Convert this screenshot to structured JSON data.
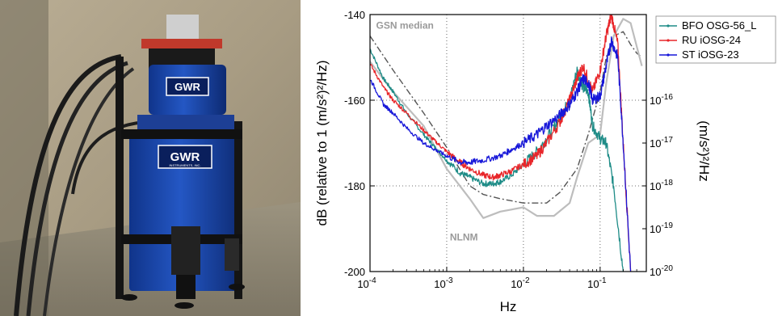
{
  "photo": {
    "logo_top": "GWR",
    "logo_bottom": "GWR",
    "logo_sub": "INSTRUMENTS, INC."
  },
  "chart_data": {
    "type": "line",
    "xlabel": "Hz",
    "ylabel": "dB (relative to 1 (m/s²)²/Hz)",
    "ylabel_right": "(m/s²)²/Hz",
    "x_scale": "log",
    "xlim": [
      0.0001,
      0.4
    ],
    "ylim": [
      -200,
      -140
    ],
    "x_ticks": [
      {
        "label_base": "10",
        "label_exp": "-4",
        "value": 0.0001
      },
      {
        "label_base": "10",
        "label_exp": "-3",
        "value": 0.001
      },
      {
        "label_base": "10",
        "label_exp": "-2",
        "value": 0.01
      },
      {
        "label_base": "10",
        "label_exp": "-1",
        "value": 0.1
      }
    ],
    "y_ticks": [
      {
        "label": "-140",
        "value": -140
      },
      {
        "label": "-160",
        "value": -160
      },
      {
        "label": "-180",
        "value": -180
      },
      {
        "label": "-200",
        "value": -200
      }
    ],
    "y_ticks_right": [
      {
        "label_base": "10",
        "label_exp": "-16",
        "value": -160
      },
      {
        "label_base": "10",
        "label_exp": "-17",
        "value": -170
      },
      {
        "label_base": "10",
        "label_exp": "-18",
        "value": -180
      },
      {
        "label_base": "10",
        "label_exp": "-19",
        "value": -190
      },
      {
        "label_base": "10",
        "label_exp": "-20",
        "value": -200
      }
    ],
    "grid": "dotted at major ticks",
    "legend": "top-right",
    "annotations": [
      {
        "text": "GSN median",
        "x": 0.00012,
        "y": -142.5
      },
      {
        "text": "NLNM",
        "x": 0.0011,
        "y": -192
      }
    ],
    "series": [
      {
        "name": "BFO OSG-56_L",
        "color": "#1e8c87",
        "x": [
          0.0001,
          0.00015,
          0.0002,
          0.0003,
          0.0005,
          0.0007,
          0.001,
          0.0015,
          0.002,
          0.003,
          0.004,
          0.005,
          0.007,
          0.01,
          0.015,
          0.02,
          0.03,
          0.04,
          0.05,
          0.06,
          0.07,
          0.08,
          0.1,
          0.12,
          0.15,
          0.2
        ],
        "y": [
          -148,
          -155,
          -158,
          -163,
          -168,
          -171,
          -174,
          -177,
          -178,
          -179.5,
          -179.5,
          -179,
          -177.5,
          -175,
          -172,
          -169,
          -164,
          -160,
          -153,
          -157,
          -158,
          -166,
          -169,
          -170,
          -180,
          -200
        ]
      },
      {
        "name": "RU iOSG-24",
        "color": "#e8262a",
        "x": [
          0.0001,
          0.00015,
          0.0002,
          0.0003,
          0.0005,
          0.0007,
          0.001,
          0.0015,
          0.002,
          0.003,
          0.004,
          0.005,
          0.007,
          0.01,
          0.015,
          0.02,
          0.03,
          0.04,
          0.05,
          0.06,
          0.08,
          0.1,
          0.12,
          0.14,
          0.17,
          0.2,
          0.25
        ],
        "y": [
          -151.5,
          -157,
          -160,
          -163,
          -167,
          -169.5,
          -172,
          -174.5,
          -176,
          -177.5,
          -178,
          -177.5,
          -176.5,
          -175,
          -173,
          -170,
          -165,
          -160,
          -155,
          -152,
          -158,
          -153,
          -145,
          -140,
          -147,
          -170,
          -200
        ]
      },
      {
        "name": "ST iOSG-23",
        "color": "#1717d9",
        "x": [
          0.0001,
          0.00015,
          0.0002,
          0.0003,
          0.0005,
          0.0007,
          0.001,
          0.0015,
          0.002,
          0.003,
          0.005,
          0.007,
          0.01,
          0.015,
          0.02,
          0.03,
          0.04,
          0.05,
          0.06,
          0.07,
          0.08,
          0.1,
          0.12,
          0.14,
          0.17,
          0.2,
          0.25
        ],
        "y": [
          -155,
          -161,
          -163,
          -166.5,
          -170,
          -171.5,
          -173,
          -174.5,
          -174.5,
          -174,
          -173,
          -171.5,
          -170,
          -168,
          -166,
          -163.5,
          -161,
          -158,
          -155,
          -156,
          -160,
          -159,
          -152,
          -146,
          -150,
          -170,
          -200
        ]
      },
      {
        "name": "GSN median",
        "color": "#555555",
        "dash": "dashdot",
        "x": [
          0.0001,
          0.0002,
          0.0005,
          0.001,
          0.002,
          0.003,
          0.005,
          0.01,
          0.02,
          0.03,
          0.05,
          0.07,
          0.1,
          0.12,
          0.15,
          0.2,
          0.25,
          0.3,
          0.35
        ],
        "y": [
          -145,
          -153,
          -163,
          -171,
          -180,
          -182,
          -183,
          -184,
          -184,
          -181.5,
          -176,
          -168,
          -158,
          -150,
          -145,
          -144,
          -147,
          -149,
          -150
        ]
      },
      {
        "name": "NLNM",
        "color": "#bdbdbd",
        "x": [
          0.0001,
          0.0002,
          0.0005,
          0.001,
          0.002,
          0.003,
          0.005,
          0.01,
          0.015,
          0.025,
          0.04,
          0.05,
          0.07,
          0.1,
          0.12,
          0.15,
          0.2,
          0.25,
          0.35
        ],
        "y": [
          -151,
          -158,
          -166,
          -176,
          -183,
          -187.5,
          -186,
          -185,
          -187,
          -187,
          -184,
          -178,
          -170,
          -168,
          -156,
          -145,
          -141,
          -142,
          -152
        ]
      }
    ]
  }
}
